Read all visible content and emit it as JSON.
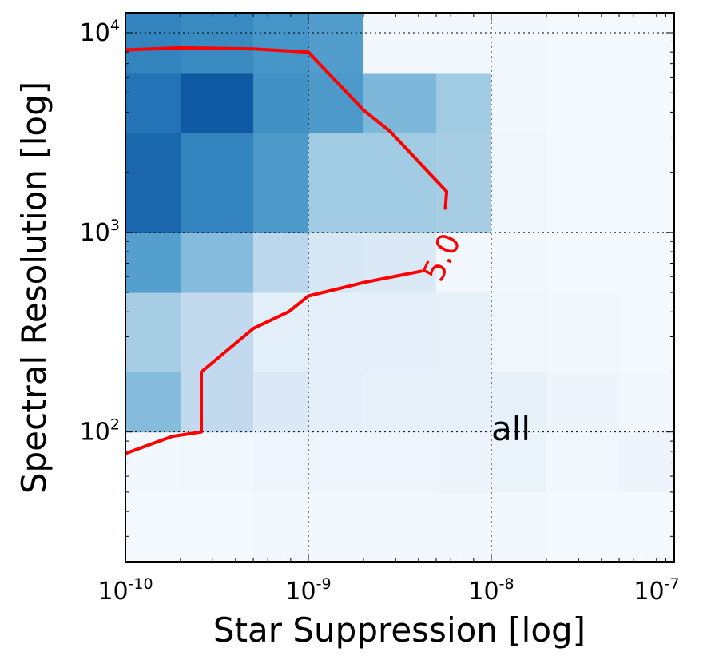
{
  "chart_data": {
    "type": "heatmap",
    "xlabel": "Star Suppression [log]",
    "ylabel": "Spectral Resolution [log]",
    "xscale": "log",
    "yscale": "log",
    "xlim": [
      1e-10,
      1e-07
    ],
    "ylim": [
      22.4,
      12589
    ],
    "grid": true,
    "annotation": "all",
    "x_ticks": [
      {
        "base": "10",
        "exp": "-10",
        "value": 1e-10
      },
      {
        "base": "10",
        "exp": "-9",
        "value": 1e-09
      },
      {
        "base": "10",
        "exp": "-8",
        "value": 1e-08
      },
      {
        "base": "10",
        "exp": "-7",
        "value": 1e-07
      }
    ],
    "y_ticks": [
      {
        "base": "10",
        "exp": "2",
        "value": 100
      },
      {
        "base": "10",
        "exp": "3",
        "value": 1000
      },
      {
        "base": "10",
        "exp": "4",
        "value": 10000
      }
    ],
    "x_bin_edges": [
      1e-10,
      2e-10,
      5e-10,
      1e-09,
      2e-09,
      5e-09,
      1e-08,
      2e-08,
      5e-08,
      1e-07
    ],
    "y_bin_edges": [
      22.4,
      50,
      100,
      200,
      500,
      1000,
      3162,
      6310,
      12589
    ],
    "z": [
      [
        0.02,
        0.02,
        0.03,
        0.03,
        0.03,
        0.03,
        0.03,
        0.02,
        0.02
      ],
      [
        0.03,
        0.04,
        0.05,
        0.05,
        0.05,
        0.06,
        0.07,
        0.04,
        0.06
      ],
      [
        0.5,
        0.3,
        0.16,
        0.11,
        0.09,
        0.09,
        0.09,
        0.06,
        0.03
      ],
      [
        0.4,
        0.3,
        0.12,
        0.11,
        0.11,
        0.1,
        0.04,
        0.03,
        0.02
      ],
      [
        0.65,
        0.5,
        0.32,
        0.18,
        0.16,
        0.03,
        0.03,
        0.02,
        0.02
      ],
      [
        0.9,
        0.78,
        0.68,
        0.42,
        0.42,
        0.4,
        0.04,
        0.02,
        0.02
      ],
      [
        0.85,
        0.96,
        0.72,
        0.68,
        0.52,
        0.42,
        0.03,
        0.02,
        0.02
      ],
      [
        0.78,
        0.75,
        0.7,
        0.66,
        0.03,
        0.03,
        0.03,
        0.02,
        0.02
      ]
    ],
    "colormap": [
      "#f7fbff",
      "#deebf7",
      "#c6dbef",
      "#9ecae1",
      "#6baed6",
      "#4292c6",
      "#2171b5",
      "#08519c"
    ],
    "contour": {
      "level_label": "5.0",
      "color": "#ff0000",
      "upper_branch": [
        [
          1e-10,
          8200
        ],
        [
          2e-10,
          8400
        ],
        [
          5e-10,
          8300
        ],
        [
          1e-09,
          8000
        ],
        [
          2e-09,
          4100
        ],
        [
          2.8e-09,
          3200
        ],
        [
          5.7e-09,
          1600
        ],
        [
          5.6e-09,
          1300
        ]
      ],
      "lower_branch": [
        [
          4.2e-09,
          640
        ],
        [
          2e-09,
          560
        ],
        [
          1e-09,
          480
        ],
        [
          7.8e-10,
          400
        ],
        [
          5e-10,
          330
        ],
        [
          2.6e-10,
          200
        ],
        [
          2.6e-10,
          100
        ],
        [
          1.8e-10,
          95
        ],
        [
          1e-10,
          78
        ]
      ]
    }
  }
}
